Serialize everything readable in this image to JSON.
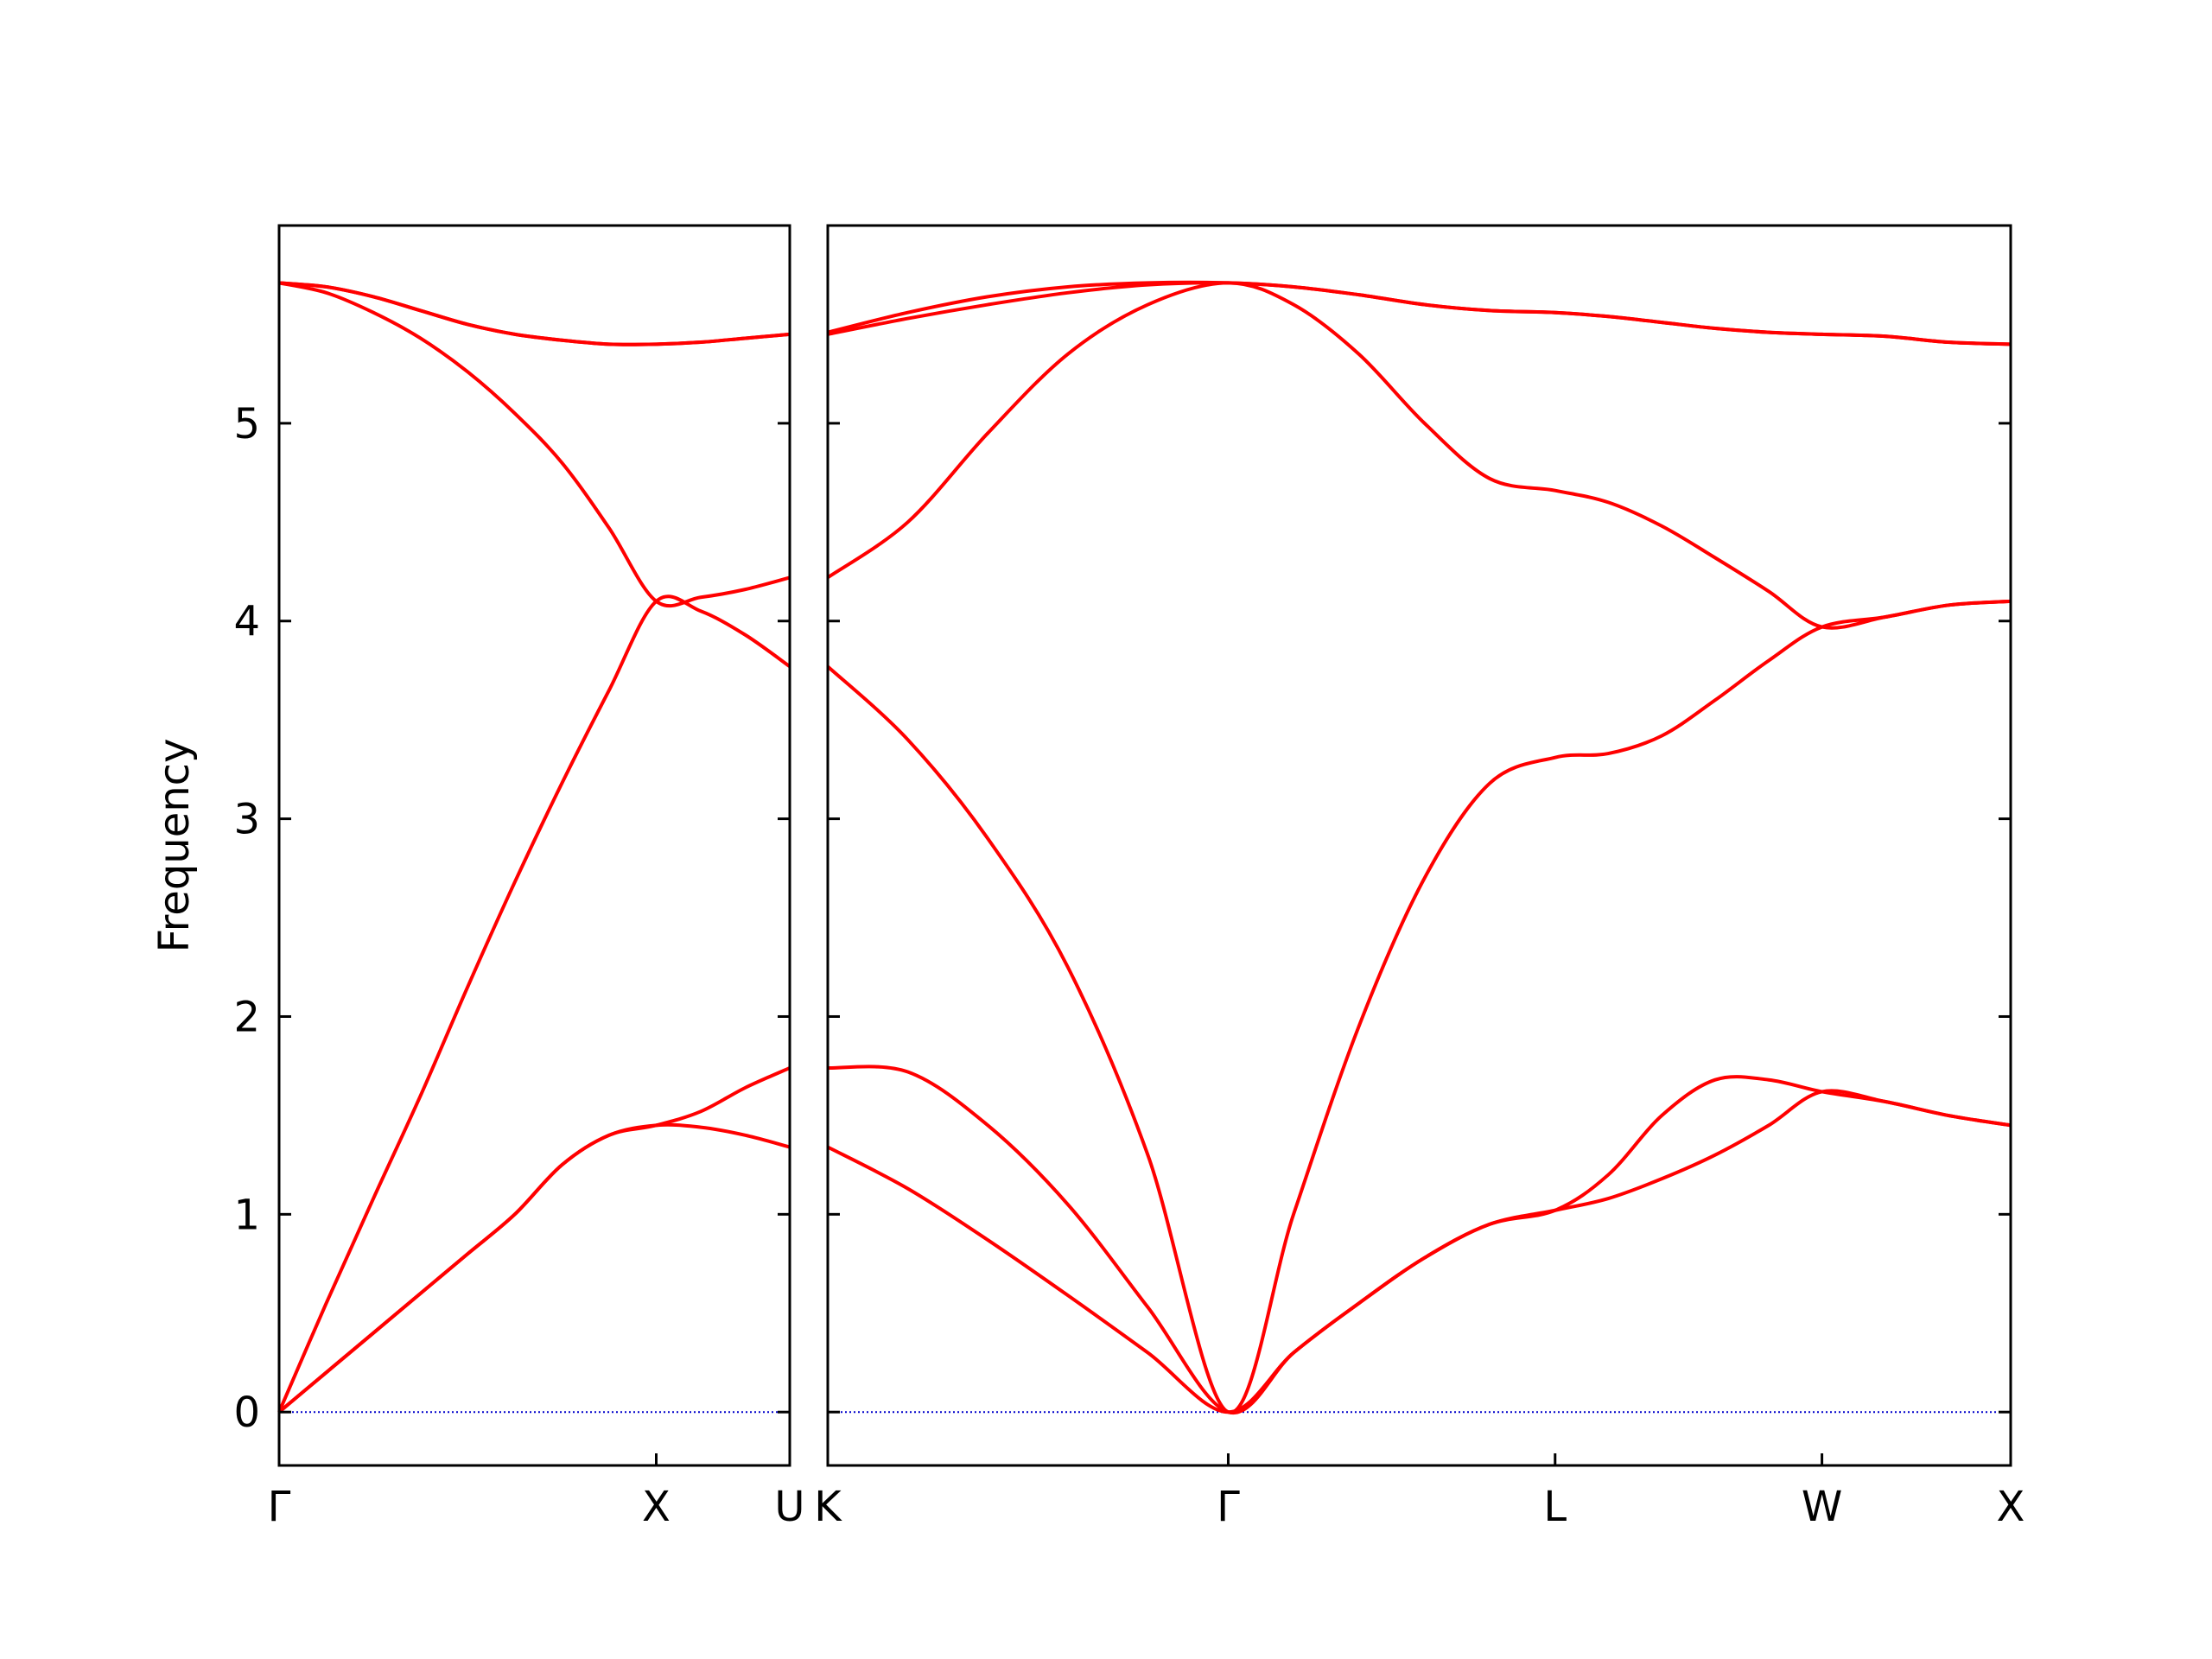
{
  "chart_data": [
    {
      "type": "line",
      "ylabel": "Frequency",
      "x": [
        0,
        0.125,
        0.25,
        0.375,
        0.5,
        0.625,
        0.75,
        0.875,
        1,
        1.118,
        1.236,
        1.354
      ],
      "xlim": [
        0,
        1.354
      ],
      "xticks": [
        {
          "value": 0,
          "label": "Γ"
        },
        {
          "value": 1,
          "label": "X"
        },
        {
          "value": 1.354,
          "label": "U"
        }
      ],
      "ylim": [
        -0.27,
        6.0
      ],
      "yticks": [
        0,
        1,
        2,
        3,
        4,
        5
      ],
      "show_ytick_labels": true,
      "hline": {
        "value": 0,
        "color": "#0000cc"
      },
      "series": [
        {
          "color": "#ff0000",
          "values": [
            0,
            0.2,
            0.4,
            0.6,
            0.8,
            1.0,
            1.25,
            1.4,
            1.45,
            1.44,
            1.4,
            1.34
          ]
        },
        {
          "color": "#ff0000",
          "values": [
            0,
            0.2,
            0.4,
            0.6,
            0.8,
            1.0,
            1.25,
            1.4,
            1.45,
            1.52,
            1.64,
            1.74
          ]
        },
        {
          "color": "#ff0000",
          "values": [
            0,
            0.55,
            1.08,
            1.6,
            2.15,
            2.68,
            3.18,
            3.65,
            4.1,
            4.05,
            3.93,
            3.77
          ]
        },
        {
          "color": "#ff0000",
          "values": [
            5.71,
            5.66,
            5.56,
            5.43,
            5.26,
            5.05,
            4.8,
            4.47,
            4.1,
            4.12,
            4.16,
            4.22
          ]
        },
        {
          "color": "#ff0000",
          "values": [
            5.71,
            5.69,
            5.64,
            5.57,
            5.5,
            5.45,
            5.42,
            5.4,
            5.4,
            5.41,
            5.43,
            5.45
          ]
        },
        {
          "color": "#ff0000",
          "values": [
            5.71,
            5.69,
            5.64,
            5.57,
            5.5,
            5.45,
            5.42,
            5.4,
            5.4,
            5.41,
            5.43,
            5.45
          ]
        }
      ]
    },
    {
      "type": "line",
      "x": [
        1.354,
        1.566,
        1.778,
        1.99,
        2.202,
        2.415,
        2.588,
        2.761,
        2.935,
        3.108,
        3.281,
        3.422,
        3.564,
        3.705,
        3.847,
        3.988,
        4.155,
        4.322,
        4.488
      ],
      "xlim": [
        1.354,
        4.488
      ],
      "xticks": [
        {
          "value": 1.354,
          "label": "K"
        },
        {
          "value": 2.415,
          "label": "Γ"
        },
        {
          "value": 3.281,
          "label": "L"
        },
        {
          "value": 3.988,
          "label": "W"
        },
        {
          "value": 4.488,
          "label": "X"
        }
      ],
      "ylim": [
        -0.27,
        6.0
      ],
      "yticks": [
        0,
        1,
        2,
        3,
        4,
        5
      ],
      "show_ytick_labels": false,
      "hline": {
        "value": 0,
        "color": "#0000cc"
      },
      "series": [
        {
          "color": "#ff0000",
          "values": [
            1.34,
            1.13,
            0.87,
            0.59,
            0.3,
            0,
            0.3,
            0.55,
            0.78,
            0.95,
            1.02,
            1.08,
            1.18,
            1.3,
            1.45,
            1.62,
            1.57,
            1.5,
            1.45
          ]
        },
        {
          "color": "#ff0000",
          "values": [
            1.74,
            1.72,
            1.45,
            1.05,
            0.53,
            0,
            0.3,
            0.55,
            0.78,
            0.95,
            1.02,
            1.2,
            1.5,
            1.68,
            1.68,
            1.62,
            1.57,
            1.5,
            1.45
          ]
        },
        {
          "color": "#ff0000",
          "values": [
            3.77,
            3.4,
            2.9,
            2.25,
            1.3,
            0,
            1.0,
            1.95,
            2.7,
            3.18,
            3.31,
            3.33,
            3.42,
            3.6,
            3.8,
            3.97,
            4.02,
            4.08,
            4.1
          ]
        },
        {
          "color": "#ff0000",
          "values": [
            4.22,
            4.5,
            4.95,
            5.35,
            5.6,
            5.71,
            5.6,
            5.35,
            5.0,
            4.72,
            4.66,
            4.6,
            4.48,
            4.32,
            4.15,
            3.97,
            4.02,
            4.08,
            4.1
          ]
        },
        {
          "color": "#ff0000",
          "values": [
            5.45,
            5.53,
            5.6,
            5.66,
            5.7,
            5.71,
            5.69,
            5.65,
            5.6,
            5.57,
            5.56,
            5.54,
            5.51,
            5.48,
            5.46,
            5.45,
            5.44,
            5.41,
            5.4
          ]
        },
        {
          "color": "#ff0000",
          "values": [
            5.46,
            5.56,
            5.64,
            5.69,
            5.71,
            5.71,
            5.69,
            5.65,
            5.6,
            5.57,
            5.56,
            5.54,
            5.51,
            5.48,
            5.46,
            5.45,
            5.44,
            5.41,
            5.4
          ]
        }
      ]
    }
  ]
}
